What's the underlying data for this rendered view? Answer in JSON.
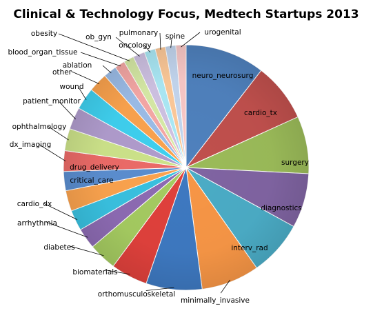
{
  "chart_data": {
    "type": "pie",
    "title": "Clinical & Technology Focus, Medtech Startups 2013",
    "legend": "none",
    "slices": [
      {
        "label": "neuro_neurosurg",
        "value": 10.8,
        "color": "#4f81bd"
      },
      {
        "label": "cardio_tx",
        "value": 8.0,
        "color": "#c0504d"
      },
      {
        "label": "surgery",
        "value": 7.8,
        "color": "#9bbb59"
      },
      {
        "label": "diagnostics",
        "value": 7.4,
        "color": "#8064a2"
      },
      {
        "label": "interv_rad",
        "value": 7.5,
        "color": "#4bacc6"
      },
      {
        "label": "minimally_invasive",
        "value": 7.9,
        "color": "#f79646"
      },
      {
        "label": "orthomusculoskeletal",
        "value": 7.6,
        "color": "#3e79c1"
      },
      {
        "label": "biomaterials",
        "value": 5.0,
        "color": "#e0413c"
      },
      {
        "label": "diabetes",
        "value": 3.8,
        "color": "#a5cb61"
      },
      {
        "label": "arrhythmia",
        "value": 2.8,
        "color": "#8d6bb3"
      },
      {
        "label": "cardio_dx",
        "value": 2.8,
        "color": "#39c1e0"
      },
      {
        "label": "critical_care",
        "value": 2.8,
        "color": "#fba34e"
      },
      {
        "label": "drug_delivery",
        "value": 2.6,
        "color": "#5b8ed0"
      },
      {
        "label": "dx_imaging",
        "value": 2.8,
        "color": "#ec6b68"
      },
      {
        "label": "ophthalmology",
        "value": 3.0,
        "color": "#cde38a"
      },
      {
        "label": "patient_monitor",
        "value": 3.0,
        "color": "#b09ccd"
      },
      {
        "label": "wound",
        "value": 3.0,
        "color": "#3fd0ef"
      },
      {
        "label": "other",
        "value": 2.6,
        "color": "#fba34e"
      },
      {
        "label": "ablation",
        "value": 1.8,
        "color": "#9cbde8"
      },
      {
        "label": "blood_organ_tissue",
        "value": 1.4,
        "color": "#f6a8a6"
      },
      {
        "label": "obesity",
        "value": 1.4,
        "color": "#d7eaa6"
      },
      {
        "label": "ob_gyn",
        "value": 1.6,
        "color": "#cfc2e3"
      },
      {
        "label": "oncology",
        "value": 1.5,
        "color": "#abe9f6"
      },
      {
        "label": "pulmonary",
        "value": 1.4,
        "color": "#fdc999"
      },
      {
        "label": "spine",
        "value": 1.4,
        "color": "#c3d6ef"
      },
      {
        "label": "urogenital",
        "value": 1.4,
        "color": "#f9c8c7"
      }
    ]
  }
}
